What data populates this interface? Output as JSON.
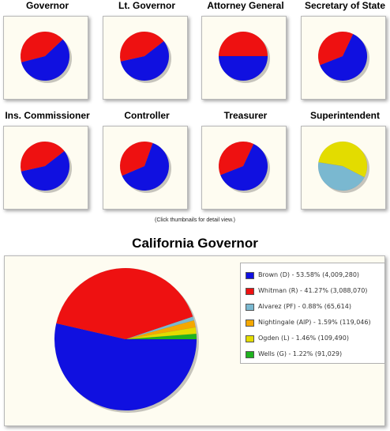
{
  "thumbnails": [
    {
      "title": "Governor",
      "slices": [
        {
          "color": "#1010e0",
          "value": 58
        },
        {
          "color": "#ee1111",
          "value": 42
        }
      ]
    },
    {
      "title": "Lt. Governor",
      "slices": [
        {
          "color": "#1010e0",
          "value": 57
        },
        {
          "color": "#ee1111",
          "value": 43
        }
      ]
    },
    {
      "title": "Attorney General",
      "slices": [
        {
          "color": "#1010e0",
          "value": 50
        },
        {
          "color": "#ee1111",
          "value": 50
        }
      ]
    },
    {
      "title": "Secretary of State",
      "slices": [
        {
          "color": "#1010e0",
          "value": 62
        },
        {
          "color": "#ee1111",
          "value": 38
        }
      ]
    },
    {
      "title": "Ins. Commissioner",
      "slices": [
        {
          "color": "#1010e0",
          "value": 57
        },
        {
          "color": "#ee1111",
          "value": 43
        }
      ]
    },
    {
      "title": "Controller",
      "slices": [
        {
          "color": "#1010e0",
          "value": 63
        },
        {
          "color": "#ee1111",
          "value": 37
        }
      ]
    },
    {
      "title": "Treasurer",
      "slices": [
        {
          "color": "#1010e0",
          "value": 62
        },
        {
          "color": "#ee1111",
          "value": 38
        }
      ]
    },
    {
      "title": "Superintendent",
      "slices": [
        {
          "color": "#7ab8d0",
          "value": 45
        },
        {
          "color": "#e3dc00",
          "value": 55
        }
      ]
    }
  ],
  "hint": "(Click thumbnails for detail view.)",
  "chart_data": {
    "type": "pie",
    "title": "California Governor",
    "legend_position": "top-right",
    "series": [
      {
        "name": "Brown (D) - 53.58% (4,009,280)",
        "value": 53.58,
        "votes": 4009280,
        "color": "#1010e0"
      },
      {
        "name": "Whitman (R) - 41.27% (3,088,070)",
        "value": 41.27,
        "votes": 3088070,
        "color": "#ee1111"
      },
      {
        "name": "Alvarez (PF) - 0.88% (65,614)",
        "value": 0.88,
        "votes": 65614,
        "color": "#7ab8d0"
      },
      {
        "name": "Nightingale (AIP) - 1.59% (119,046)",
        "value": 1.59,
        "votes": 119046,
        "color": "#f5a800"
      },
      {
        "name": "Ogden (L) - 1.46% (109,490)",
        "value": 1.46,
        "votes": 109490,
        "color": "#e3dc00"
      },
      {
        "name": "Wells (G) - 1.22% (91,029)",
        "value": 1.22,
        "votes": 91029,
        "color": "#1fb31f"
      }
    ]
  }
}
